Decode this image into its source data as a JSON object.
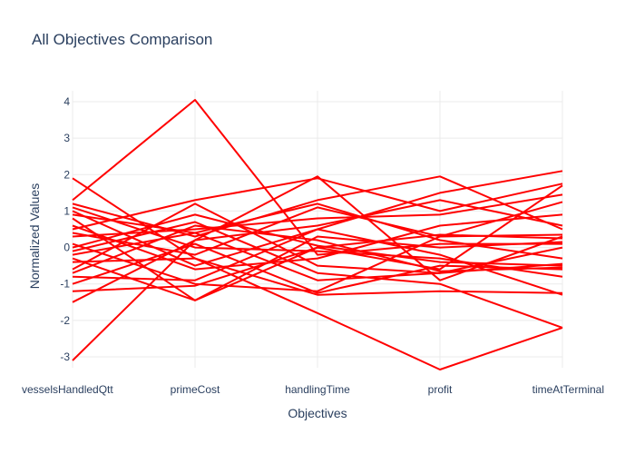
{
  "chart_data": {
    "type": "line",
    "title": "All Objectives Comparison",
    "xlabel": "Objectives",
    "ylabel": "Normalized Values",
    "categories": [
      "vesselsHandledQtt",
      "primeCost",
      "handlingTime",
      "profit",
      "timeAtTerminal"
    ],
    "yticks": [
      -3,
      -2,
      -1,
      0,
      1,
      2,
      3,
      4
    ],
    "ylim": [
      -3.3,
      4.3
    ],
    "grid": true,
    "line_color": "#ff0000",
    "series": [
      {
        "values": [
          -3.1,
          0.2,
          1.95,
          -0.9,
          0.3
        ]
      },
      {
        "values": [
          1.9,
          -0.3,
          -1.8,
          -3.35,
          -2.2
        ]
      },
      {
        "values": [
          1.3,
          4.05,
          -0.2,
          0.1,
          0.1
        ]
      },
      {
        "values": [
          1.2,
          0.3,
          1.3,
          1.95,
          0.5
        ]
      },
      {
        "values": [
          1.0,
          -0.5,
          0.5,
          1.5,
          2.1
        ]
      },
      {
        "values": [
          0.8,
          -1.45,
          0.0,
          -0.6,
          1.7
        ]
      },
      {
        "values": [
          0.5,
          1.3,
          1.9,
          1.0,
          1.75
        ]
      },
      {
        "values": [
          0.3,
          0.5,
          0.8,
          0.9,
          1.45
        ]
      },
      {
        "values": [
          0.1,
          -1.0,
          -1.2,
          0.3,
          0.35
        ]
      },
      {
        "values": [
          0.0,
          0.9,
          0.05,
          -0.4,
          -0.5
        ]
      },
      {
        "values": [
          -0.2,
          0.4,
          1.2,
          0.2,
          -0.3
        ]
      },
      {
        "values": [
          -0.4,
          -0.3,
          -1.3,
          -1.2,
          -1.25
        ]
      },
      {
        "values": [
          -0.6,
          1.2,
          -0.5,
          -0.7,
          0.0
        ]
      },
      {
        "values": [
          -0.8,
          -0.9,
          0.5,
          -0.2,
          -1.3
        ]
      },
      {
        "values": [
          -1.0,
          0.1,
          -1.25,
          -0.5,
          -0.6
        ]
      },
      {
        "values": [
          -1.2,
          -1.05,
          0.0,
          0.35,
          0.25
        ]
      },
      {
        "values": [
          -1.5,
          0.2,
          0.6,
          1.3,
          0.6
        ]
      },
      {
        "values": [
          0.6,
          -0.6,
          -0.3,
          0.6,
          0.9
        ]
      },
      {
        "values": [
          -0.1,
          0.7,
          -0.7,
          -1.0,
          -2.2
        ]
      },
      {
        "values": [
          0.4,
          -0.2,
          1.1,
          0.3,
          1.25
        ]
      },
      {
        "values": [
          0.9,
          0.4,
          -0.9,
          -0.7,
          -0.45
        ]
      },
      {
        "values": [
          -0.3,
          -1.45,
          0.3,
          0.0,
          0.15
        ]
      },
      {
        "values": [
          1.1,
          0.0,
          -0.1,
          -0.3,
          -0.8
        ]
      },
      {
        "values": [
          -0.7,
          0.6,
          0.2,
          -0.65,
          -0.55
        ]
      }
    ]
  }
}
